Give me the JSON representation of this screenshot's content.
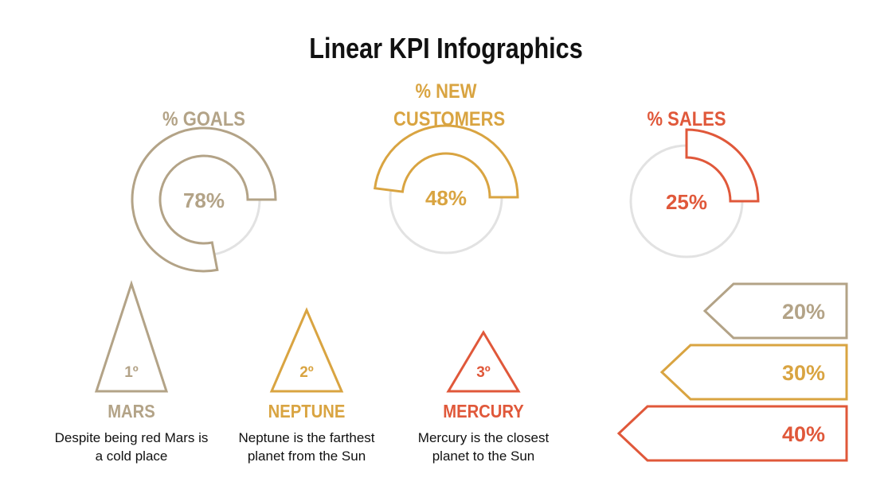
{
  "title": "Linear KPI Infographics",
  "kpis": [
    {
      "title": "% GOALS",
      "value": 78,
      "label": "78%",
      "color": "#b3a387"
    },
    {
      "title": "% NEW CUSTOMERS",
      "value": 48,
      "label": "48%",
      "color": "#d9a441"
    },
    {
      "title": "% SALES",
      "value": 25,
      "label": "25%",
      "color": "#e0583a"
    }
  ],
  "planets": [
    {
      "rank": "1º",
      "name": "MARS",
      "description": "Despite being red Mars is a cold place",
      "color": "#b3a387"
    },
    {
      "rank": "2º",
      "name": "NEPTUNE",
      "description": "Neptune is the farthest planet from the Sun",
      "color": "#d9a441"
    },
    {
      "rank": "3º",
      "name": "MERCURY",
      "description": "Mercury is the closest planet to the Sun",
      "color": "#e0583a"
    }
  ],
  "bars": [
    {
      "value": 20,
      "label": "20%",
      "color": "#b3a387"
    },
    {
      "value": 30,
      "label": "30%",
      "color": "#d9a441"
    },
    {
      "value": 40,
      "label": "40%",
      "color": "#e0583a"
    }
  ]
}
